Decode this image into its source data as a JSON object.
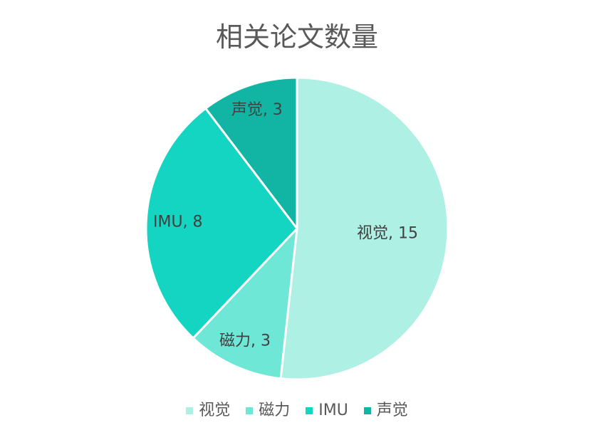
{
  "chart_data": {
    "type": "pie",
    "title": "相关论文数量",
    "categories": [
      "视觉",
      "磁力",
      "IMU",
      "声觉"
    ],
    "values": [
      15,
      3,
      8,
      3
    ],
    "data_labels": [
      "视觉, 15",
      "磁力, 3",
      "IMU, 8",
      "声觉, 3"
    ],
    "colors": [
      "#AEF0E3",
      "#6FE7D7",
      "#14D5C2",
      "#12B5A4"
    ],
    "start_angle": "12 o'clock",
    "direction": "clockwise",
    "legend": "bottom"
  }
}
